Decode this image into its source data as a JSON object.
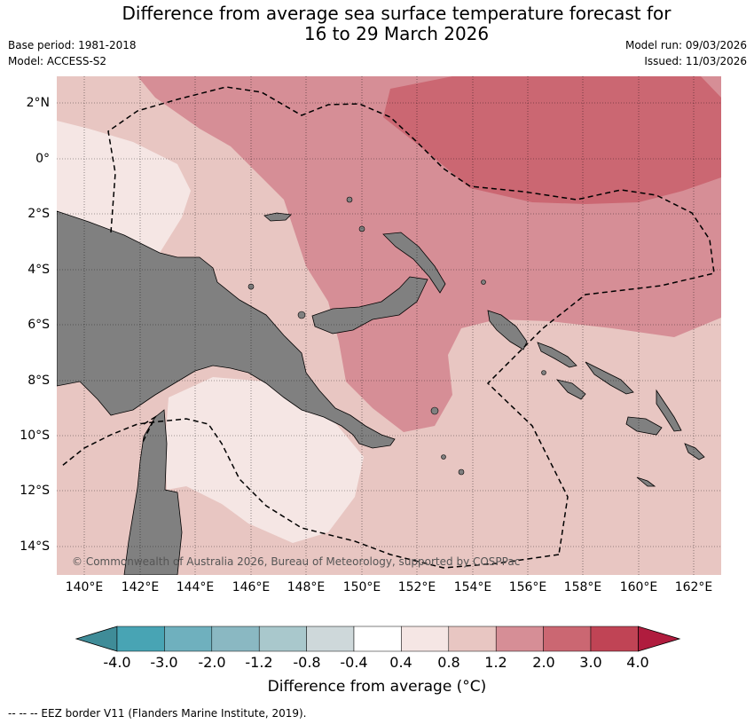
{
  "title_line1": "Difference from average sea surface temperature forecast for",
  "title_line2": "16 to 29 March 2026",
  "base_period": "Base period: 1981-2018",
  "model": "Model: ACCESS-S2",
  "model_run": "Model run: 09/03/2026",
  "issued": "Issued: 11/03/2026",
  "copyright": "© Commonwealth of Australia 2026, Bureau of Meteorology, supported by COSPPac",
  "lat_labels": [
    "2°N",
    "0°",
    "2°S",
    "4°S",
    "6°S",
    "8°S",
    "10°S",
    "12°S",
    "14°S"
  ],
  "lon_labels": [
    "140°E",
    "142°E",
    "144°E",
    "146°E",
    "148°E",
    "150°E",
    "152°E",
    "154°E",
    "156°E",
    "158°E",
    "160°E",
    "162°E"
  ],
  "colorbar": {
    "ticks": [
      "-4.0",
      "-3.0",
      "-2.0",
      "-1.2",
      "-0.8",
      "-0.4",
      "0.4",
      "0.8",
      "1.2",
      "2.0",
      "3.0",
      "4.0"
    ],
    "colors": [
      "#3f8c98",
      "#48a4b4",
      "#6fb0be",
      "#8ab8c2",
      "#a9c8cc",
      "#ced8da",
      "#ffffff",
      "#f5e6e4",
      "#e8c6c2",
      "#d68e96",
      "#cb6772",
      "#c04455",
      "#b01c3e"
    ],
    "title": "Difference from average (°C)"
  },
  "footer": "-- -- -- EEZ border V11 (Flanders Marine Institute, 2019).",
  "map_colors": {
    "land": "#808080",
    "band_0_4_0_8": "#f5e6e4",
    "band_0_8_1_2": "#e8c6c2",
    "band_1_2_2_0": "#d68e96",
    "band_2_0_3_0": "#cb6772"
  }
}
